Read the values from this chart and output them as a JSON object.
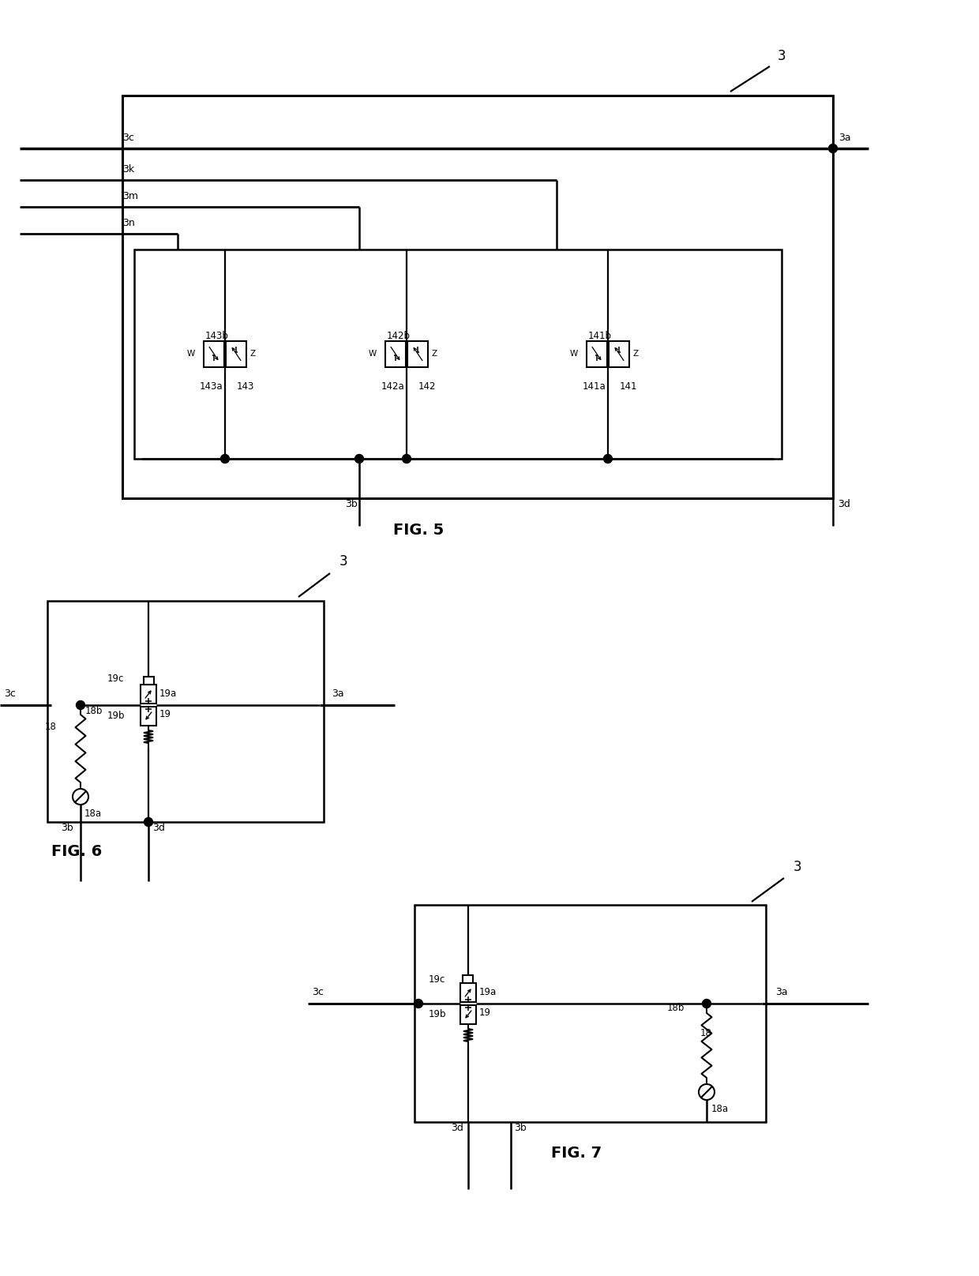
{
  "bg_color": "#ffffff",
  "line_color": "#000000",
  "fig_width": 12.4,
  "fig_height": 16.16,
  "fig5_title": "FIG. 5",
  "fig6_title": "FIG. 6",
  "fig7_title": "FIG. 7"
}
